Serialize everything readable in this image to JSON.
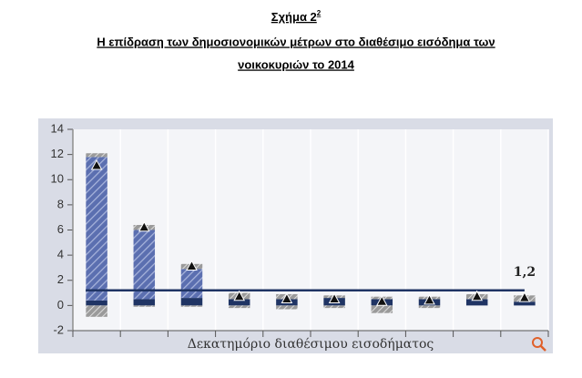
{
  "chart_data": {
    "type": "bar",
    "title": "Σχήμα 2",
    "title_superscript": "2",
    "subtitle": [
      "Η επίδραση των δημοσιονομικών μέτρων στο διαθέσιμο εισόδημα των",
      "νοικοκυριών το 2014"
    ],
    "x_label": "Δεκατημόριο διαθέσιμου εισοδήματος",
    "categories": [
      null,
      null,
      null,
      null,
      null,
      null,
      null,
      null,
      null,
      null
    ],
    "stacked": true,
    "series": [
      {
        "color": "#1f3464",
        "pattern": "solid",
        "values": [
          0.4,
          0.5,
          0.6,
          0.5,
          0.5,
          0.6,
          0.5,
          0.5,
          0.5,
          0.3
        ]
      },
      {
        "color": "#5b6fb0",
        "pattern": "hatch",
        "values": [
          11.4,
          5.5,
          2.3,
          0,
          0,
          0,
          0,
          0,
          0,
          0
        ]
      },
      {
        "color": "#9a9a9a",
        "pattern": "hatch",
        "values": [
          0.3,
          0.4,
          0.4,
          0.5,
          0.4,
          0.2,
          0.2,
          0.2,
          0.4,
          0.5
        ]
      },
      {
        "color": "#9a9a9a",
        "pattern": "hatch",
        "values": [
          -0.9,
          -0.1,
          -0.1,
          -0.2,
          -0.3,
          -0.2,
          -0.6,
          -0.2,
          0,
          0
        ]
      }
    ],
    "markers": {
      "color": "#111111",
      "values": [
        11.1,
        6.2,
        3.1,
        0.7,
        0.5,
        0.5,
        0.3,
        0.4,
        0.7,
        0.6
      ]
    },
    "hline": {
      "value": 1.2,
      "label": "1,2",
      "color": "#1f3464"
    },
    "ylim": [
      -2,
      14
    ],
    "yticks": [
      -2,
      0,
      2,
      4,
      6,
      8,
      10,
      12,
      14
    ],
    "grid": "x"
  }
}
